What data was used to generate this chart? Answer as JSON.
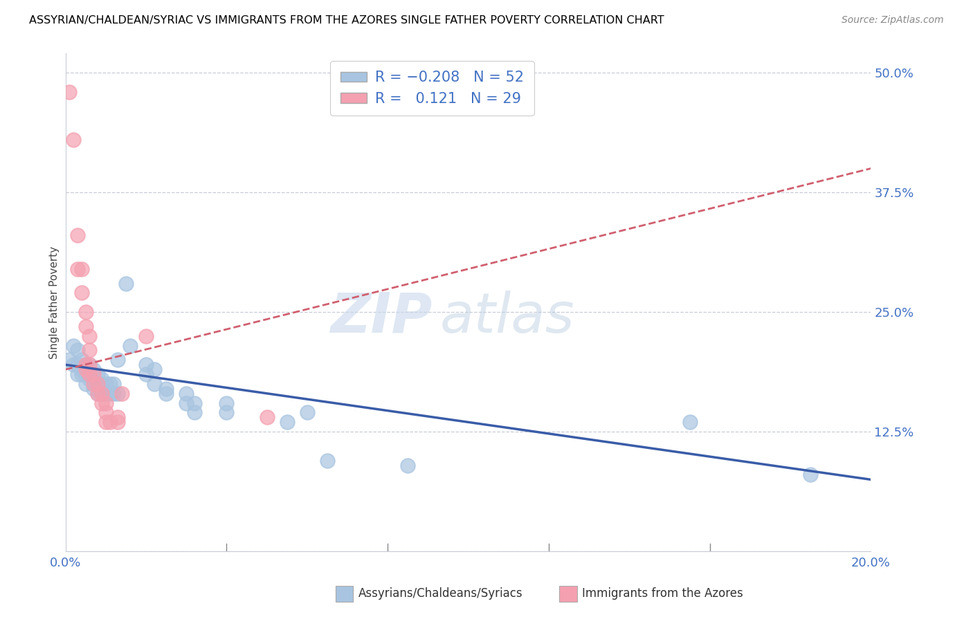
{
  "title": "ASSYRIAN/CHALDEAN/SYRIAC VS IMMIGRANTS FROM THE AZORES SINGLE FATHER POVERTY CORRELATION CHART",
  "source": "Source: ZipAtlas.com",
  "ylabel": "Single Father Poverty",
  "right_yticks": [
    0.0,
    0.125,
    0.25,
    0.375,
    0.5
  ],
  "right_yticklabels": [
    "",
    "12.5%",
    "25.0%",
    "37.5%",
    "50.0%"
  ],
  "xmin": 0.0,
  "xmax": 0.2,
  "ymin": 0.0,
  "ymax": 0.52,
  "blue_color": "#a8c4e0",
  "pink_color": "#f4a0b0",
  "blue_line_color": "#3a5ca8",
  "trend_line_pink_color": "#d06070",
  "watermark_zip": "ZIP",
  "watermark_atlas": "atlas",
  "blue_scatter": [
    [
      0.001,
      0.2
    ],
    [
      0.002,
      0.215
    ],
    [
      0.002,
      0.195
    ],
    [
      0.003,
      0.21
    ],
    [
      0.003,
      0.195
    ],
    [
      0.003,
      0.185
    ],
    [
      0.004,
      0.2
    ],
    [
      0.004,
      0.19
    ],
    [
      0.004,
      0.185
    ],
    [
      0.005,
      0.195
    ],
    [
      0.005,
      0.185
    ],
    [
      0.005,
      0.175
    ],
    [
      0.006,
      0.195
    ],
    [
      0.006,
      0.185
    ],
    [
      0.006,
      0.18
    ],
    [
      0.007,
      0.19
    ],
    [
      0.007,
      0.175
    ],
    [
      0.007,
      0.17
    ],
    [
      0.008,
      0.185
    ],
    [
      0.008,
      0.175
    ],
    [
      0.008,
      0.165
    ],
    [
      0.009,
      0.18
    ],
    [
      0.009,
      0.175
    ],
    [
      0.009,
      0.165
    ],
    [
      0.01,
      0.175
    ],
    [
      0.01,
      0.165
    ],
    [
      0.011,
      0.175
    ],
    [
      0.011,
      0.165
    ],
    [
      0.012,
      0.165
    ],
    [
      0.012,
      0.175
    ],
    [
      0.013,
      0.2
    ],
    [
      0.013,
      0.165
    ],
    [
      0.015,
      0.28
    ],
    [
      0.016,
      0.215
    ],
    [
      0.02,
      0.195
    ],
    [
      0.02,
      0.185
    ],
    [
      0.022,
      0.19
    ],
    [
      0.022,
      0.175
    ],
    [
      0.025,
      0.17
    ],
    [
      0.025,
      0.165
    ],
    [
      0.03,
      0.165
    ],
    [
      0.03,
      0.155
    ],
    [
      0.032,
      0.155
    ],
    [
      0.032,
      0.145
    ],
    [
      0.04,
      0.155
    ],
    [
      0.04,
      0.145
    ],
    [
      0.055,
      0.135
    ],
    [
      0.06,
      0.145
    ],
    [
      0.065,
      0.095
    ],
    [
      0.085,
      0.09
    ],
    [
      0.155,
      0.135
    ],
    [
      0.185,
      0.08
    ]
  ],
  "pink_scatter": [
    [
      0.001,
      0.48
    ],
    [
      0.002,
      0.43
    ],
    [
      0.003,
      0.33
    ],
    [
      0.003,
      0.295
    ],
    [
      0.004,
      0.295
    ],
    [
      0.004,
      0.27
    ],
    [
      0.005,
      0.25
    ],
    [
      0.005,
      0.235
    ],
    [
      0.005,
      0.195
    ],
    [
      0.005,
      0.19
    ],
    [
      0.006,
      0.225
    ],
    [
      0.006,
      0.21
    ],
    [
      0.006,
      0.195
    ],
    [
      0.006,
      0.185
    ],
    [
      0.007,
      0.185
    ],
    [
      0.007,
      0.175
    ],
    [
      0.008,
      0.175
    ],
    [
      0.008,
      0.165
    ],
    [
      0.009,
      0.165
    ],
    [
      0.009,
      0.155
    ],
    [
      0.01,
      0.155
    ],
    [
      0.01,
      0.145
    ],
    [
      0.01,
      0.135
    ],
    [
      0.011,
      0.135
    ],
    [
      0.013,
      0.135
    ],
    [
      0.013,
      0.14
    ],
    [
      0.014,
      0.165
    ],
    [
      0.02,
      0.225
    ],
    [
      0.05,
      0.14
    ]
  ],
  "legend_label1": "R = -0.208   N = 52",
  "legend_label2": "R =   0.121   N = 29",
  "bottom_label1": "Assyrians/Chaldeans/Syriacs",
  "bottom_label2": "Immigrants from the Azores"
}
